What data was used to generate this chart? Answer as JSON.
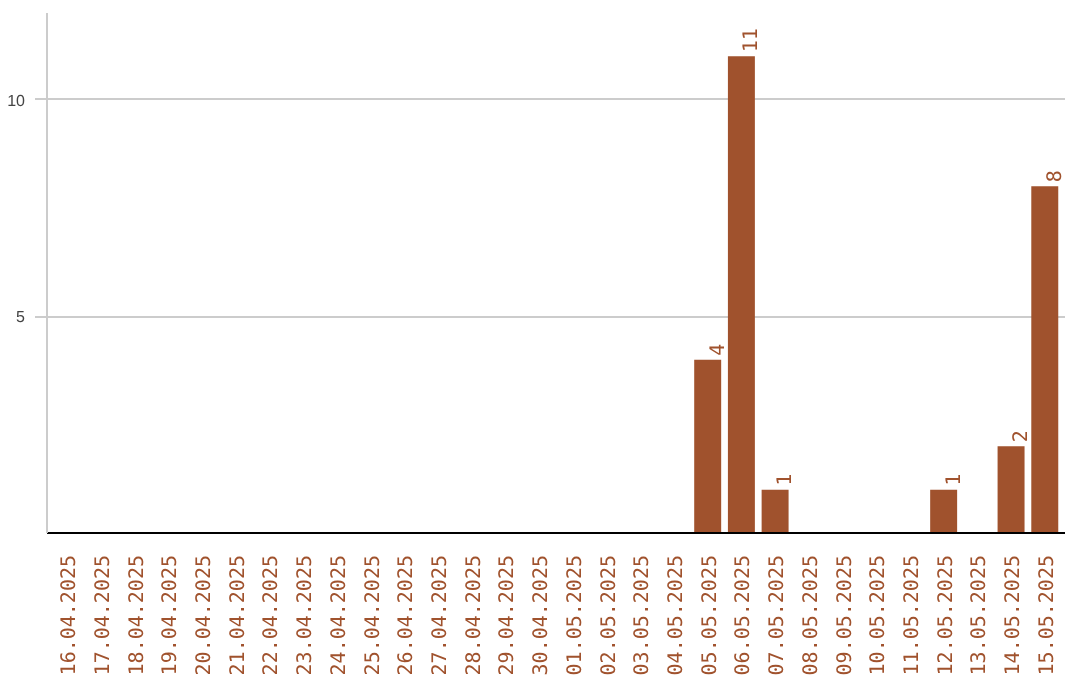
{
  "chart_data": {
    "type": "bar",
    "categories": [
      "16.04.2025",
      "17.04.2025",
      "18.04.2025",
      "19.04.2025",
      "20.04.2025",
      "21.04.2025",
      "22.04.2025",
      "23.04.2025",
      "24.04.2025",
      "25.04.2025",
      "26.04.2025",
      "27.04.2025",
      "28.04.2025",
      "29.04.2025",
      "30.04.2025",
      "01.05.2025",
      "02.05.2025",
      "03.05.2025",
      "04.05.2025",
      "05.05.2025",
      "06.05.2025",
      "07.05.2025",
      "08.05.2025",
      "09.05.2025",
      "10.05.2025",
      "11.05.2025",
      "12.05.2025",
      "13.05.2025",
      "14.05.2025",
      "15.05.2025"
    ],
    "values": [
      0,
      0,
      0,
      0,
      0,
      0,
      0,
      0,
      0,
      0,
      0,
      0,
      0,
      0,
      0,
      0,
      0,
      0,
      0,
      4,
      11,
      1,
      0,
      0,
      0,
      0,
      1,
      0,
      2,
      8
    ],
    "value_labels": [
      null,
      null,
      null,
      null,
      null,
      null,
      null,
      null,
      null,
      null,
      null,
      null,
      null,
      null,
      null,
      null,
      null,
      null,
      null,
      "4",
      "11",
      "1",
      null,
      null,
      null,
      null,
      "1",
      null,
      "2",
      "8"
    ],
    "color": "#a0522d",
    "ylim": [
      0,
      12
    ],
    "yticks": [
      5,
      10
    ],
    "grid": "y"
  }
}
